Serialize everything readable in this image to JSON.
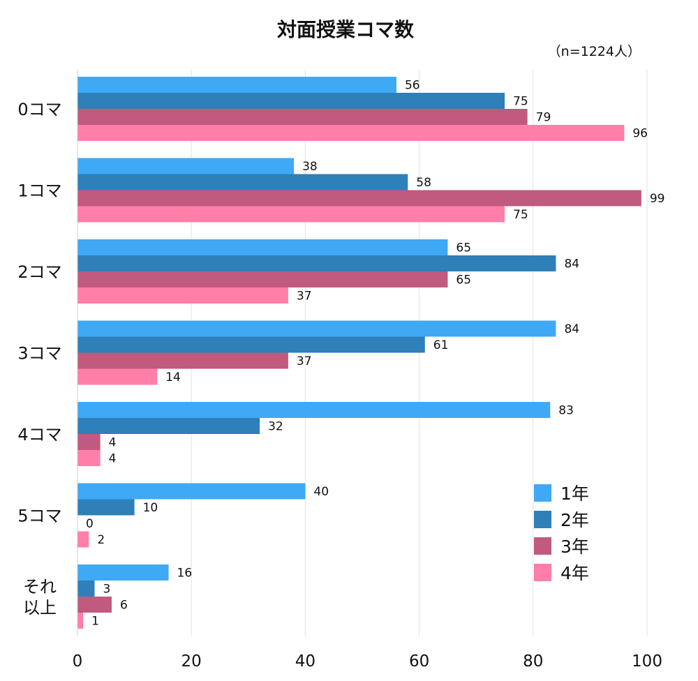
{
  "chart_data": {
    "type": "bar",
    "orientation": "horizontal",
    "title": "対面授業コマ数",
    "note": "（n=1224人）",
    "categories": [
      "0コマ",
      "1コマ",
      "2コマ",
      "3コマ",
      "4コマ",
      "5コマ",
      "それ\n以上"
    ],
    "category_lines": [
      [
        "0コマ"
      ],
      [
        "1コマ"
      ],
      [
        "2コマ"
      ],
      [
        "3コマ"
      ],
      [
        "4コマ"
      ],
      [
        "5コマ"
      ],
      [
        "それ",
        "以上"
      ]
    ],
    "series": [
      {
        "name": "1年",
        "color": "#3fa9f5",
        "values": [
          56,
          38,
          65,
          84,
          83,
          40,
          16
        ]
      },
      {
        "name": "2年",
        "color": "#2f7fb9",
        "values": [
          75,
          58,
          84,
          61,
          32,
          10,
          3
        ]
      },
      {
        "name": "3年",
        "color": "#c05a7e",
        "values": [
          79,
          99,
          65,
          37,
          4,
          0,
          6
        ]
      },
      {
        "name": "4年",
        "color": "#ff7fa9",
        "values": [
          96,
          75,
          37,
          14,
          4,
          2,
          1
        ]
      }
    ],
    "xlim": [
      0,
      100
    ],
    "xticks": [
      0,
      20,
      40,
      60,
      80,
      100
    ],
    "grid": true,
    "legend_position": "bottom-right",
    "xlabel": "",
    "ylabel": ""
  }
}
